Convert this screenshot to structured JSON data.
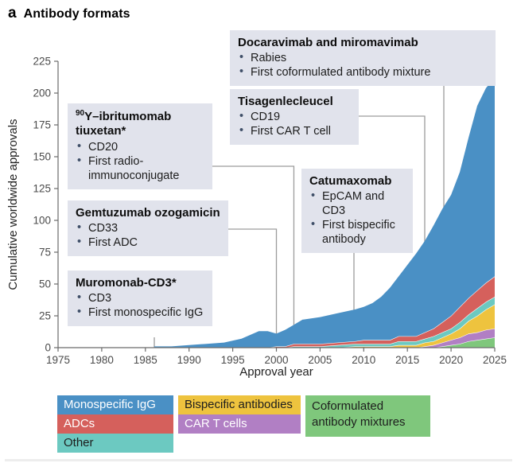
{
  "title": {
    "panel_label": "a",
    "text": "Antibody formats"
  },
  "chart_data": {
    "type": "area",
    "stacked": true,
    "title": "Antibody formats",
    "xlabel": "Approval year",
    "ylabel": "Cumulative worldwide approvals",
    "xlim": [
      1975,
      2025
    ],
    "ylim": [
      0,
      225
    ],
    "x_ticks": [
      1975,
      1980,
      1985,
      1990,
      1995,
      2000,
      2005,
      2010,
      2015,
      2020,
      2025
    ],
    "y_ticks": [
      0,
      25,
      50,
      75,
      100,
      125,
      150,
      175,
      200,
      225
    ],
    "grid": false,
    "legend_position": "bottom",
    "years": [
      1986,
      1988,
      1990,
      1992,
      1994,
      1996,
      1998,
      1999,
      2000,
      2001,
      2002,
      2003,
      2005,
      2007,
      2009,
      2010,
      2011,
      2012,
      2013,
      2014,
      2015,
      2016,
      2017,
      2018,
      2019,
      2020,
      2021,
      2022,
      2023,
      2024,
      2025
    ],
    "series": [
      {
        "name": "Coformulated antibody mixtures",
        "color": "#7fc77c",
        "values": [
          0,
          0,
          0,
          0,
          0,
          0,
          0,
          0,
          0,
          0,
          0,
          0,
          0,
          0,
          0,
          0,
          0,
          0,
          0,
          0,
          0,
          0,
          0,
          0,
          1,
          2,
          3,
          5,
          6,
          7,
          8
        ]
      },
      {
        "name": "CAR T cells",
        "color": "#b17fc4",
        "values": [
          0,
          0,
          0,
          0,
          0,
          0,
          0,
          0,
          0,
          0,
          0,
          0,
          0,
          0,
          0,
          0,
          0,
          0,
          0,
          0,
          0,
          0,
          1,
          2,
          3,
          4,
          5,
          6,
          6,
          7,
          7
        ]
      },
      {
        "name": "Bispecific antibodies",
        "color": "#eec33e",
        "values": [
          0,
          0,
          0,
          0,
          0,
          0,
          0,
          0,
          0,
          0,
          0,
          0,
          0,
          0,
          1,
          1,
          1,
          1,
          1,
          2,
          2,
          2,
          3,
          3,
          4,
          5,
          7,
          10,
          13,
          16,
          19
        ]
      },
      {
        "name": "Other",
        "color": "#6cc9c1",
        "values": [
          0,
          0,
          0,
          0,
          0,
          0,
          0,
          0,
          0,
          0,
          1,
          1,
          1,
          2,
          2,
          2,
          2,
          2,
          2,
          3,
          3,
          3,
          3,
          4,
          4,
          4,
          5,
          5,
          6,
          6,
          6
        ]
      },
      {
        "name": "ADCs",
        "color": "#d5605c",
        "values": [
          0,
          0,
          0,
          0,
          0,
          0,
          0,
          0,
          1,
          1,
          2,
          2,
          2,
          2,
          2,
          3,
          3,
          3,
          3,
          4,
          4,
          4,
          5,
          6,
          8,
          10,
          12,
          13,
          14,
          15,
          16
        ]
      },
      {
        "name": "Monospecific IgG",
        "color": "#4a90c5",
        "values": [
          1,
          1,
          2,
          3,
          4,
          7,
          13,
          13,
          10,
          13,
          15,
          19,
          21,
          23,
          25,
          26,
          29,
          34,
          41,
          47,
          56,
          65,
          72,
          81,
          89,
          95,
          106,
          126,
          145,
          153,
          156
        ]
      }
    ]
  },
  "annotations": [
    {
      "title": "Docaravimab and miromavimab",
      "bullets": [
        "Rabies",
        "First coformulated antibody mixture"
      ]
    },
    {
      "title": "Tisagenlecleucel",
      "bullets": [
        "CD19",
        "First CAR T cell"
      ]
    },
    {
      "title_sup": "90",
      "title_rest": "Y–ibritumomab tiuxetan*",
      "bullets": [
        "CD20",
        "First radio-immunoconjugate"
      ]
    },
    {
      "title": "Gemtuzumab ozogamicin",
      "bullets": [
        "CD33",
        "First ADC"
      ]
    },
    {
      "title": "Catumaxomab",
      "bullets": [
        "EpCAM and CD3",
        "First bispecific antibody"
      ]
    },
    {
      "title": "Muromonab-CD3*",
      "bullets": [
        "CD3",
        "First monospecific IgG"
      ]
    }
  ],
  "legend": {
    "items": [
      {
        "label": "Monospecific IgG",
        "color": "#4a90c5",
        "text": "#ffffff"
      },
      {
        "label": "ADCs",
        "color": "#d5605c",
        "text": "#ffffff"
      },
      {
        "label": "Other",
        "color": "#6cc9c1",
        "text": "#1d1d1d"
      },
      {
        "label": "Bispecific antibodies",
        "color": "#eec33e",
        "text": "#1d1d1d"
      },
      {
        "label": "CAR T cells",
        "color": "#b17fc4",
        "text": "#ffffff"
      },
      {
        "label": "Coformulated antibody mixtures",
        "color": "#7fc77c",
        "text": "#1d1d1d"
      }
    ]
  }
}
